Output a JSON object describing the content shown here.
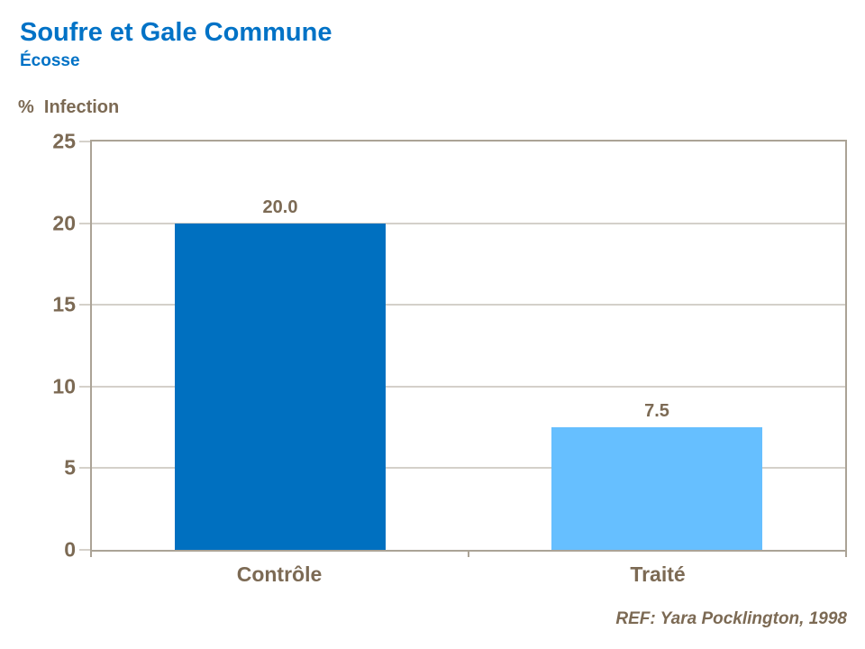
{
  "header": {
    "title": "Soufre et Gale Commune",
    "subtitle": "Écosse"
  },
  "chart_data": {
    "type": "bar",
    "title": "Soufre et Gale Commune",
    "subtitle": "Écosse",
    "ylabel": "%  Infection",
    "xlabel": "",
    "categories": [
      "Contrôle",
      "Traité"
    ],
    "values": [
      20.0,
      7.5
    ],
    "value_labels": [
      "20.0",
      "7.5"
    ],
    "bar_colors": [
      "#0070C0",
      "#66BFFF"
    ],
    "ylim": [
      0,
      25
    ],
    "yticks": [
      0,
      5,
      10,
      15,
      20,
      25
    ],
    "grid": true,
    "legend_position": "none"
  },
  "footer": {
    "reference": "REF: Yara Pocklington, 1998"
  },
  "colors": {
    "title_blue": "#0072C6",
    "text_brown": "#7C6A54",
    "axis_line": "#ABA396",
    "gridline": "#A9A295",
    "background": "#FFFFFF"
  }
}
